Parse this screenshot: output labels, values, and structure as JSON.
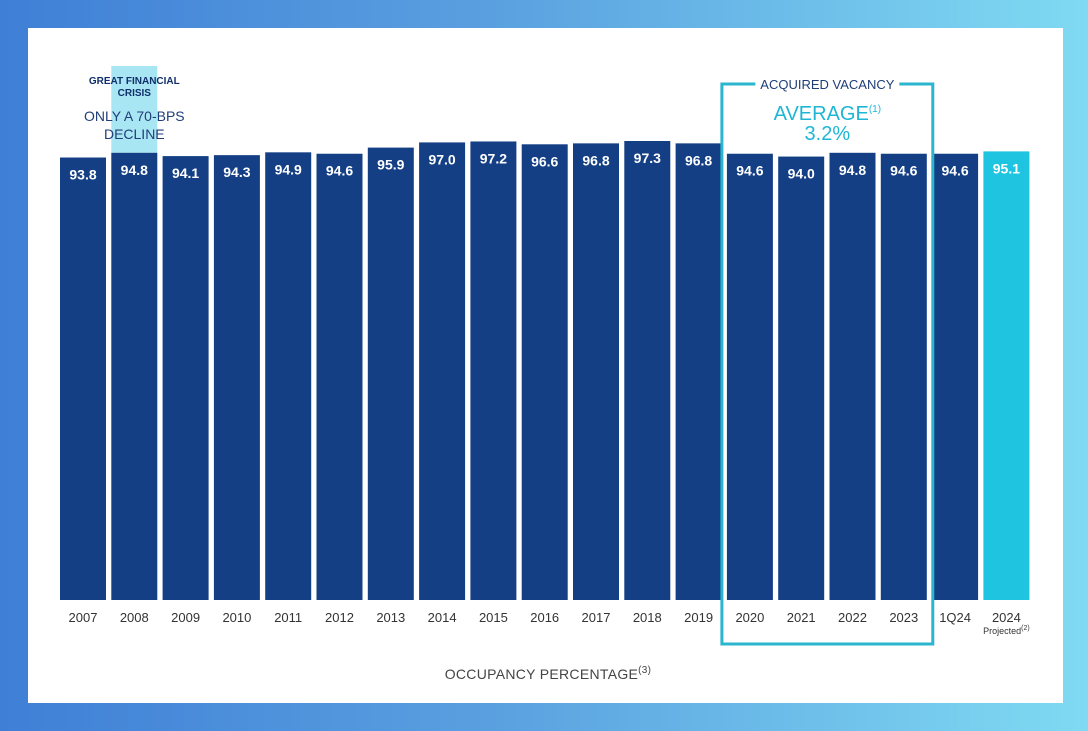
{
  "colors": {
    "bar": "#143f85",
    "bar_projected": "#1fc4e0",
    "highlight_box_fill": "#a9e6f4",
    "vacancy_box_stroke": "#2bb5cf"
  },
  "chart_data": {
    "type": "bar",
    "title": "",
    "xlabel": "OCCUPANCY PERCENTAGE",
    "xlabel_sup": "(3)",
    "ylabel": "",
    "categories": [
      "2007",
      "2008",
      "2009",
      "2010",
      "2011",
      "2012",
      "2013",
      "2014",
      "2015",
      "2016",
      "2017",
      "2018",
      "2019",
      "2020",
      "2021",
      "2022",
      "2023",
      "1Q24",
      "2024"
    ],
    "values": [
      93.8,
      94.8,
      94.1,
      94.3,
      94.9,
      94.6,
      95.9,
      97.0,
      97.2,
      96.6,
      96.8,
      97.3,
      96.8,
      94.6,
      94.0,
      94.8,
      94.6,
      94.6,
      95.1
    ],
    "value_labels": [
      "93.8",
      "94.8",
      "94.1",
      "94.3",
      "94.9",
      "94.6",
      "95.9",
      "97.0",
      "97.2",
      "96.6",
      "96.8",
      "97.3",
      "96.8",
      "94.6",
      "94.0",
      "94.8",
      "94.6",
      "94.6",
      "95.1"
    ],
    "projected_index": 18,
    "projected_label": "Projected",
    "projected_sup": "(2)",
    "ylim": [
      0,
      97.3
    ],
    "annotations": {
      "gfc": {
        "line1": "GREAT FINANCIAL",
        "line2": "CRISIS",
        "line3": "ONLY A 70-BPS",
        "line4": "DECLINE",
        "index": 1
      },
      "vacancy": {
        "header": "ACQUIRED VACANCY",
        "label": "AVERAGE",
        "label_sup": "(1)",
        "value": "3.2%",
        "start_index": 13,
        "end_index": 16
      }
    }
  }
}
